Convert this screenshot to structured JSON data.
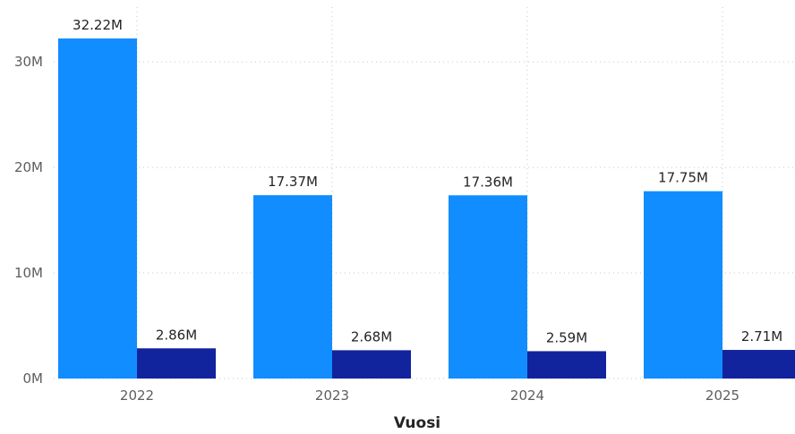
{
  "chart_data": {
    "type": "bar",
    "categories": [
      "2022",
      "2023",
      "2024",
      "2025"
    ],
    "series": [
      {
        "values": [
          32.22,
          17.37,
          17.36,
          17.75
        ],
        "labels": [
          "32.22M",
          "17.37M",
          "17.36M",
          "17.75M"
        ],
        "color": "#118dff"
      },
      {
        "values": [
          2.86,
          2.68,
          2.59,
          2.71
        ],
        "labels": [
          "2.86M",
          "2.68M",
          "2.59M",
          "2.71M"
        ],
        "color": "#12239e"
      }
    ],
    "xlabel": "Vuosi",
    "ylabel": "",
    "ylim": [
      0,
      34
    ],
    "yticks": [
      {
        "value": 0,
        "label": "0M"
      },
      {
        "value": 10,
        "label": "10M"
      },
      {
        "value": 20,
        "label": "20M"
      },
      {
        "value": 30,
        "label": "30M"
      }
    ],
    "grid": true,
    "legend": "none"
  }
}
